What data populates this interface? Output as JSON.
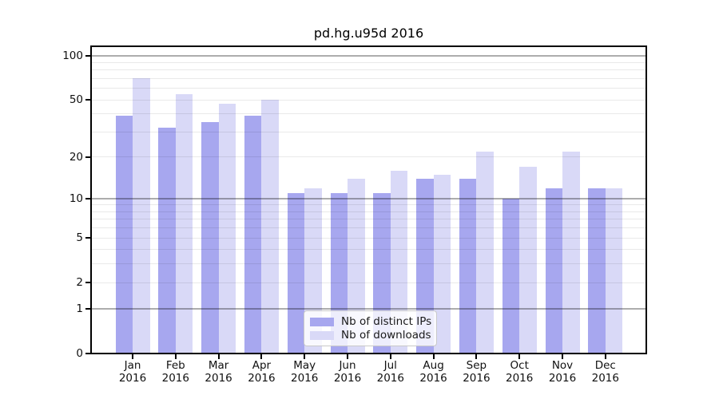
{
  "chart_data": {
    "type": "bar",
    "title": "pd.hg.u95d 2016",
    "categories": [
      "Jan 2016",
      "Feb 2016",
      "Mar 2016",
      "Apr 2016",
      "May 2016",
      "Jun 2016",
      "Jul 2016",
      "Aug 2016",
      "Sep 2016",
      "Oct 2016",
      "Nov 2016",
      "Dec 2016"
    ],
    "series": [
      {
        "name": "Nb of distinct IPs",
        "key": "distinct-ips",
        "color": "#a7a7ef",
        "values": [
          39,
          32,
          35,
          39,
          11,
          11,
          11,
          14,
          14,
          10,
          12,
          12
        ]
      },
      {
        "name": "Nb of downloads",
        "key": "downloads",
        "color": "#d9d9f7",
        "values": [
          70,
          55,
          47,
          50,
          12,
          14,
          16,
          15,
          22,
          17,
          22,
          12
        ]
      }
    ],
    "yscale": "log1p",
    "ylim": [
      0,
      115
    ],
    "yticks": [
      100,
      50,
      20,
      10,
      5,
      2,
      1,
      0
    ],
    "grid": {
      "on": true,
      "major_lines": [
        100,
        10,
        1
      ],
      "minor_lines": [
        90,
        80,
        70,
        60,
        50,
        40,
        30,
        20,
        9,
        8,
        7,
        6,
        5,
        4,
        3,
        2
      ]
    },
    "legend": {
      "position": "lower-center",
      "labels": [
        "Nb of distinct IPs",
        "Nb of downloads"
      ]
    }
  }
}
